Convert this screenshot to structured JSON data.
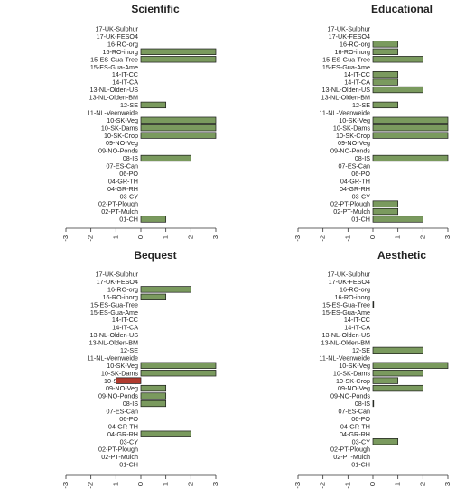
{
  "chart_data": [
    {
      "type": "bar",
      "orientation": "horizontal",
      "title": "Scientific",
      "categories": [
        "17-UK-Sulphur",
        "17-UK-FESO4",
        "16-RO-org",
        "16-RO-inorg",
        "15-ES-Gua-Tree",
        "15-ES-Gua-Ame",
        "14-IT-CC",
        "14-IT-CA",
        "13-NL-Olden-US",
        "13-NL-Olden-BM",
        "12-SE",
        "11-NL-Veenweide",
        "10-SK-Veg",
        "10-SK-Dams",
        "10-SK-Crop",
        "09-NO-Veg",
        "09-NO-Ponds",
        "08-IS",
        "07-ES-Can",
        "06-PO",
        "04-GR-TH",
        "04-GR-RH",
        "03-CY",
        "02-PT-Plough",
        "02-PT-Mulch",
        "01-CH"
      ],
      "values": [
        null,
        null,
        null,
        3,
        3,
        null,
        null,
        null,
        null,
        null,
        1,
        null,
        3,
        3,
        3,
        null,
        null,
        2,
        null,
        null,
        null,
        null,
        null,
        null,
        null,
        1
      ],
      "xlim": [
        -3,
        3
      ],
      "xticks": [
        "-3",
        "-2",
        "-1",
        "0",
        "1",
        "2",
        "3"
      ],
      "grid": false
    },
    {
      "type": "bar",
      "orientation": "horizontal",
      "title": "Educational",
      "categories": [
        "17-UK-Sulphur",
        "17-UK-FESO4",
        "16-RO-org",
        "16-RO-inorg",
        "15-ES-Gua-Tree",
        "15-ES-Gua-Ame",
        "14-IT-CC",
        "14-IT-CA",
        "13-NL-Olden-US",
        "13-NL-Olden-BM",
        "12-SE",
        "11-NL-Veenweide",
        "10-SK-Veg",
        "10-SK-Dams",
        "10-SK-Crop",
        "09-NO-Veg",
        "09-NO-Ponds",
        "08-IS",
        "07-ES-Can",
        "06-PO",
        "04-GR-TH",
        "04-GR-RH",
        "03-CY",
        "02-PT-Plough",
        "02-PT-Mulch",
        "01-CH"
      ],
      "values": [
        null,
        null,
        1,
        1,
        2,
        null,
        1,
        1,
        2,
        null,
        1,
        null,
        3,
        3,
        3,
        null,
        null,
        3,
        null,
        null,
        null,
        null,
        null,
        1,
        1,
        2
      ],
      "xlim": [
        -3,
        3
      ],
      "xticks": [
        "-3",
        "-2",
        "-1",
        "0",
        "1",
        "2",
        "3"
      ],
      "grid": false
    },
    {
      "type": "bar",
      "orientation": "horizontal",
      "title": "Bequest",
      "categories": [
        "17-UK-Sulphur",
        "17-UK-FESO4",
        "16-RO-org",
        "16-RO-inorg",
        "15-ES-Gua-Tree",
        "15-ES-Gua-Ame",
        "14-IT-CC",
        "14-IT-CA",
        "13-NL-Olden-US",
        "13-NL-Olden-BM",
        "12-SE",
        "11-NL-Veenweide",
        "10-SK-Veg",
        "10-SK-Dams",
        "10-SK-Crop",
        "09-NO-Veg",
        "09-NO-Ponds",
        "08-IS",
        "07-ES-Can",
        "06-PO",
        "04-GR-TH",
        "04-GR-RH",
        "03-CY",
        "02-PT-Plough",
        "02-PT-Mulch",
        "01-CH"
      ],
      "values": [
        null,
        null,
        2,
        1,
        null,
        null,
        null,
        null,
        null,
        null,
        null,
        null,
        3,
        3,
        -1,
        1,
        1,
        1,
        null,
        null,
        null,
        2,
        null,
        null,
        null,
        null
      ],
      "xlim": [
        -3,
        3
      ],
      "xticks": [
        "-3",
        "-2",
        "-1",
        "0",
        "1",
        "2",
        "3"
      ],
      "grid": false
    },
    {
      "type": "bar",
      "orientation": "horizontal",
      "title": "Aesthetic",
      "categories": [
        "17-UK-Sulphur",
        "17-UK-FESO4",
        "16-RO-org",
        "16-RO-inorg",
        "15-ES-Gua-Tree",
        "15-ES-Gua-Ame",
        "14-IT-CC",
        "14-IT-CA",
        "13-NL-Olden-US",
        "13-NL-Olden-BM",
        "12-SE",
        "11-NL-Veenweide",
        "10-SK-Veg",
        "10-SK-Dams",
        "10-SK-Crop",
        "09-NO-Veg",
        "09-NO-Ponds",
        "08-IS",
        "07-ES-Can",
        "06-PO",
        "04-GR-TH",
        "04-GR-RH",
        "03-CY",
        "02-PT-Plough",
        "02-PT-Mulch",
        "01-CH"
      ],
      "values": [
        null,
        null,
        null,
        null,
        0,
        null,
        null,
        null,
        null,
        null,
        2,
        null,
        3,
        2,
        1,
        2,
        null,
        0,
        null,
        null,
        null,
        null,
        1,
        null,
        null,
        null
      ],
      "xlim": [
        -3,
        3
      ],
      "xticks": [
        "-3",
        "-2",
        "-1",
        "0",
        "1",
        "2",
        "3"
      ],
      "grid": false
    }
  ],
  "colors": {
    "positive_bar": "#7a9a5e",
    "negative_bar": "#b03a2e",
    "bar_stroke": "#1a1a1a",
    "axis": "#333333",
    "text": "#222222"
  }
}
